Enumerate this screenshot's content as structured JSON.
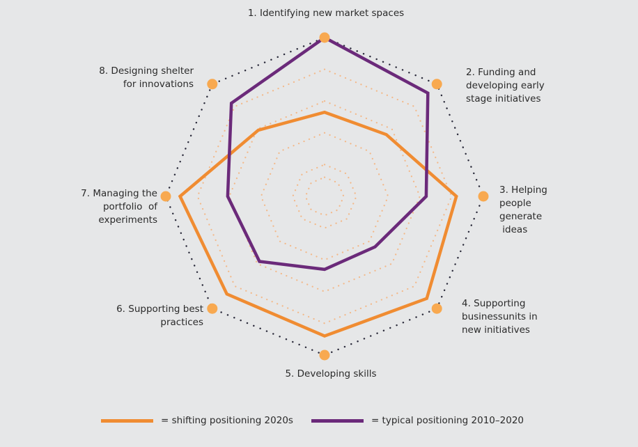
{
  "chart_data": {
    "type": "radar",
    "axes": [
      "1. Identifying new market spaces",
      "2. Funding and developing early stage initiatives",
      "3. Helping people generate ideas",
      "4. Supporting businessunits in new initiatives",
      "5. Developing skills",
      "6. Supporting best practices",
      "7. Managing the portfolio of experiments",
      "8. Designing shelter for innovations"
    ],
    "axis_label_lines": [
      [
        "1. Identifying new market spaces"
      ],
      [
        "2. Funding and",
        "developing early",
        "stage initiatives"
      ],
      [
        "3. Helping",
        "people",
        "generate",
        " ideas"
      ],
      [
        "4. Supporting",
        "businessunits in",
        "new initiatives"
      ],
      [
        "5. Developing skills"
      ],
      [
        "6. Supporting best",
        "practices"
      ],
      [
        "7. Managing the",
        "portfolio  of",
        "experiments"
      ],
      [
        "8. Designing shelter",
        "for innovations"
      ]
    ],
    "rlim": [
      0,
      100
    ],
    "grid_rings": [
      20,
      40,
      60,
      80
    ],
    "series": [
      {
        "name": "= shifting positioning 2020s",
        "color": "#f08c32",
        "values": [
          53,
          55,
          83,
          91,
          88,
          87,
          91,
          59
        ]
      },
      {
        "name": "= typical positioning 2010–2020",
        "color": "#6b2a7a",
        "values": [
          100,
          92,
          64,
          45,
          46,
          58,
          61,
          83
        ]
      }
    ],
    "colors": {
      "outline_dots": "#2a2a3a",
      "vertex_marker": "#f8a950",
      "grid": "#f3b98a"
    },
    "legend_position": "bottom"
  }
}
